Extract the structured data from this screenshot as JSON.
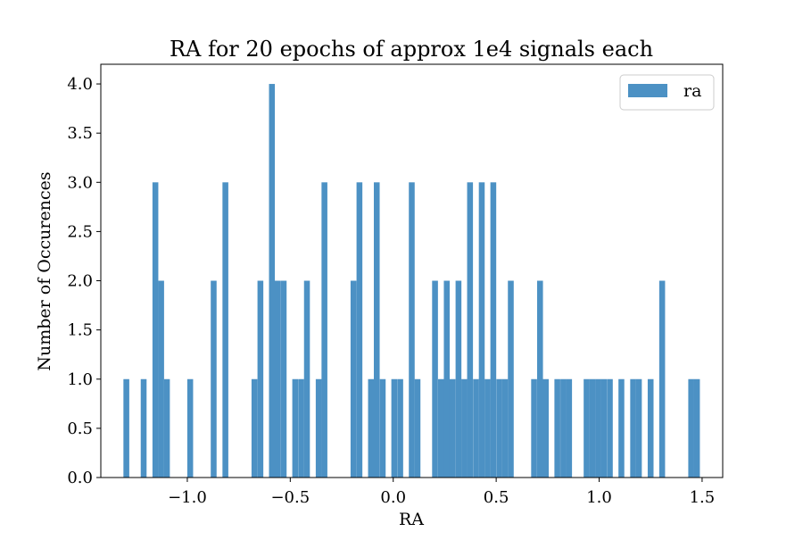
{
  "chart_data": {
    "type": "bar",
    "title": "RA for 20 epochs of approx 1e4 signals each",
    "xlabel": "RA",
    "ylabel": "Number of Occurences",
    "xlim": [
      -1.42,
      1.6
    ],
    "ylim": [
      0,
      4.2
    ],
    "bin_width": 0.0284,
    "xticks": [
      -1.0,
      -0.5,
      0.0,
      0.5,
      1.0,
      1.5
    ],
    "xtick_labels": [
      "−1.0",
      "−0.5",
      "0.0",
      "0.5",
      "1.0",
      "1.5"
    ],
    "yticks": [
      0,
      0.5,
      1,
      1.5,
      2,
      2.5,
      3,
      3.5,
      4
    ],
    "ytick_labels": [
      "0.0",
      "0.5",
      "1.0",
      "1.5",
      "2.0",
      "2.5",
      "3.0",
      "3.5",
      "4.0"
    ],
    "grid": false,
    "legend_position": "top-right",
    "bar_color": "#4c91c4",
    "series": [
      {
        "name": "ra",
        "x": [
          -1.296,
          -1.212,
          -1.155,
          -1.127,
          -1.099,
          -0.986,
          -0.872,
          -0.815,
          -0.674,
          -0.645,
          -0.589,
          -0.561,
          -0.532,
          -0.476,
          -0.447,
          -0.419,
          -0.362,
          -0.334,
          -0.193,
          -0.164,
          -0.108,
          -0.08,
          -0.051,
          0.005,
          0.034,
          0.09,
          0.118,
          0.203,
          0.232,
          0.26,
          0.288,
          0.317,
          0.345,
          0.373,
          0.402,
          0.43,
          0.458,
          0.486,
          0.515,
          0.543,
          0.571,
          0.684,
          0.713,
          0.741,
          0.797,
          0.826,
          0.854,
          0.939,
          0.967,
          0.995,
          1.023,
          1.052,
          1.108,
          1.165,
          1.193,
          1.25,
          1.306,
          1.447,
          1.475
        ],
        "values": [
          1,
          1,
          3,
          2,
          1,
          1,
          2,
          3,
          1,
          2,
          4,
          2,
          2,
          1,
          1,
          2,
          1,
          3,
          2,
          3,
          1,
          3,
          1,
          1,
          1,
          3,
          1,
          2,
          1,
          2,
          1,
          2,
          1,
          3,
          1,
          3,
          1,
          3,
          1,
          1,
          2,
          1,
          2,
          1,
          1,
          1,
          1,
          1,
          1,
          1,
          1,
          1,
          1,
          1,
          1,
          1,
          2,
          1,
          1
        ]
      }
    ]
  }
}
